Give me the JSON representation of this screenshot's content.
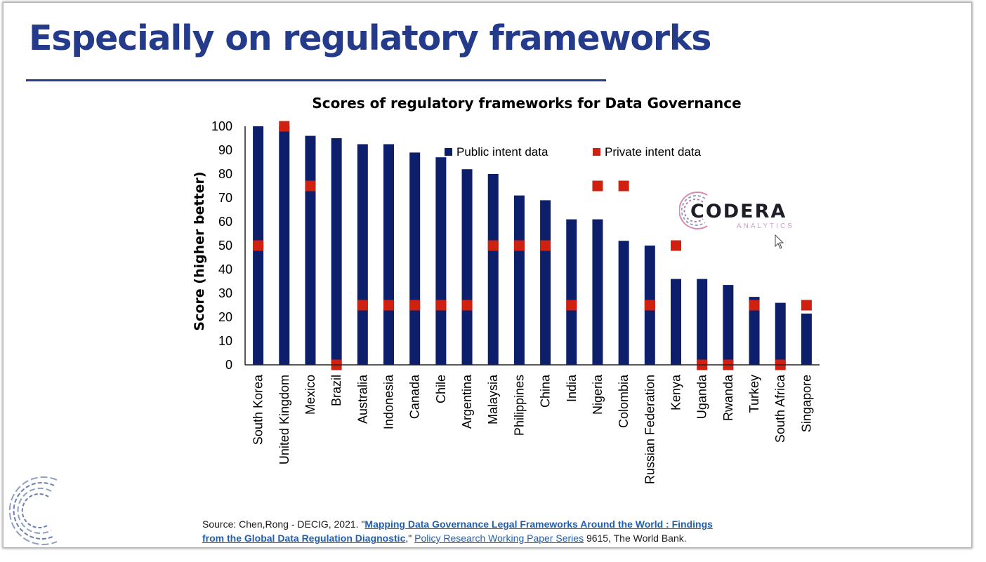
{
  "slide": {
    "title": "Especially on regulatory frameworks"
  },
  "logo": {
    "name": "CODERA",
    "subtitle": "ANALYTICS"
  },
  "source": {
    "prefix": "Source: Chen,Rong - DECIG, 2021. \"",
    "link_title_line1": "Mapping Data Governance Legal Frameworks Around the World : Findings",
    "link_title_line2": "from the Global Data Regulation Diagnostic",
    "mid": ",\" ",
    "series_link": "Policy Research Working Paper Series",
    "suffix": " 9615, The World Bank."
  },
  "colors": {
    "title": "#243a8a",
    "public_bar": "#0d1f6b",
    "private_marker": "#d0200f"
  },
  "chart_data": {
    "type": "bar",
    "title": "Scores of regulatory frameworks for Data Governance",
    "xlabel": "",
    "ylabel": "Score (higher better)",
    "ylim": [
      0,
      100
    ],
    "yticks": [
      0,
      10,
      20,
      30,
      40,
      50,
      60,
      70,
      80,
      90,
      100
    ],
    "grid": false,
    "legend_position": "top-right",
    "categories": [
      "South Korea",
      "United Kingdom",
      "Mexico",
      "Brazil",
      "Australia",
      "Indonesia",
      "Canada",
      "Chile",
      "Argentina",
      "Malaysia",
      "Philippines",
      "China",
      "India",
      "Nigeria",
      "Colombia",
      "Russian Federation",
      "Kenya",
      "Uganda",
      "Rwanda",
      "Turkey",
      "South Africa",
      "Singapore"
    ],
    "series": [
      {
        "name": "Public intent data",
        "mark": "bar",
        "values": [
          100,
          100,
          96,
          95,
          92.5,
          92.5,
          89,
          87,
          82,
          80,
          71,
          69,
          61,
          61,
          52,
          50,
          36,
          36,
          33.5,
          28.5,
          26,
          21.5
        ]
      },
      {
        "name": "Private intent data",
        "mark": "square",
        "values": [
          50,
          100,
          75,
          0,
          25,
          25,
          25,
          25,
          25,
          50,
          50,
          50,
          25,
          75,
          75,
          25,
          50,
          0,
          0,
          25,
          0,
          25
        ]
      }
    ]
  }
}
